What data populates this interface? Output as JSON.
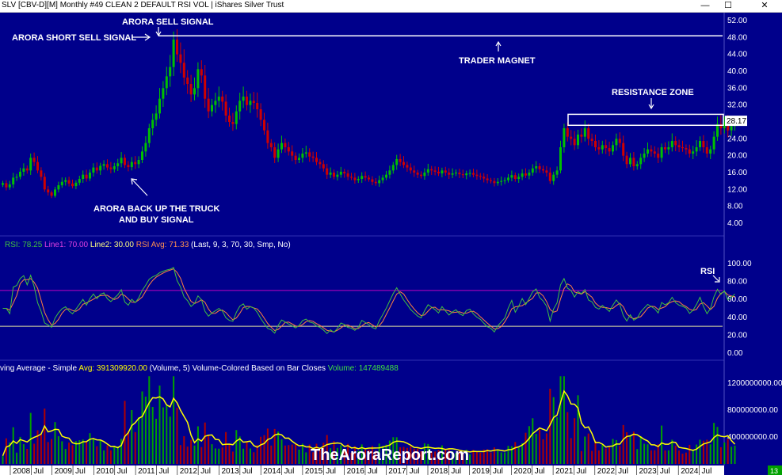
{
  "window": {
    "title": "SLV [CBV-D][M]  Monthly #49 CLEAN  2 DEFAULT RSI VOL | iShares Silver Trust",
    "minimize": "—",
    "maximize": "☐",
    "close": "✕"
  },
  "price_panel": {
    "last_price_label": "28.17",
    "annotations": {
      "short_sell": "ARORA SHORT SELL SIGNAL",
      "sell": "ARORA SELL SIGNAL",
      "trader_magnet": "TRADER MAGNET",
      "resistance": "RESISTANCE ZONE",
      "buy_line1": "ARORA BACK UP THE TRUCK",
      "buy_line2": "AND BUY SIGNAL"
    }
  },
  "rsi_panel": {
    "legend": {
      "rsi": "RSI: 78.25",
      "line1": "Line1: 70.00",
      "line2": "Line2: 30.00",
      "avg": "RSI Avg: 71.33",
      "params": "(Last, 9, 3, 70, 30, Smp, No)"
    },
    "label": "RSI"
  },
  "volume_panel": {
    "legend": {
      "ma": "ving Average - Simple",
      "avg": "Avg: 391309920.00",
      "vol": "(Volume, 5)  Volume-Colored Based on Bar Closes",
      "volume": "Volume: 147489488"
    },
    "watermark": "TheAroraReport.com",
    "corner_badge": "13"
  },
  "colors": {
    "background": "#00008b",
    "up": "#00c000",
    "down": "#d00000",
    "rsi_line": "#40c040",
    "rsi_avg": "#ff8040",
    "line1": "#c000c0",
    "line2": "#e0e0a0",
    "volume_ma": "#ffff00"
  },
  "chart_data": [
    {
      "type": "candlestick",
      "title": "SLV Monthly",
      "x_axis_labels": [
        "2008",
        "Jul",
        "2009",
        "Jul",
        "2010",
        "Jul",
        "2011",
        "Jul",
        "2012",
        "Jul",
        "2013",
        "Jul",
        "2014",
        "Jul",
        "2015",
        "Jul",
        "2016",
        "Jul",
        "2017",
        "Jul",
        "2018",
        "Jul",
        "2019",
        "Jul",
        "2020",
        "Jul",
        "2021",
        "Jul",
        "2022",
        "Jul",
        "2023",
        "Jul",
        "2024",
        "Jul"
      ],
      "y_ticks": [
        "52.00",
        "48.00",
        "44.00",
        "40.00",
        "36.00",
        "32.00",
        "28.00",
        "24.00",
        "20.00",
        "16.00",
        "12.00",
        "8.00",
        "4.00"
      ],
      "ylim": [
        0,
        53
      ],
      "resistance_zone": [
        27.2,
        29.8
      ],
      "trader_magnet_level": 48.4,
      "close_series": [
        13.5,
        12.5,
        13.2,
        14.8,
        15.0,
        16.2,
        17.0,
        16.5,
        19.5,
        18.5,
        16.5,
        15.0,
        12.0,
        11.3,
        10.5,
        12.0,
        13.0,
        13.8,
        14.2,
        13.4,
        12.8,
        13.6,
        14.5,
        15.5,
        14.6,
        16.0,
        17.2,
        16.5,
        17.6,
        18.0,
        17.2,
        16.8,
        17.5,
        18.2,
        19.5,
        17.8,
        17.3,
        18.5,
        18.0,
        19.0,
        21.0,
        23.0,
        26.5,
        28.5,
        30.0,
        33.5,
        36.0,
        38.8,
        41.0,
        47.5,
        44.0,
        42.0,
        38.5,
        37.0,
        34.5,
        36.0,
        40.5,
        39.0,
        33.5,
        30.5,
        32.0,
        33.0,
        34.0,
        32.8,
        29.5,
        28.0,
        27.5,
        30.5,
        33.0,
        34.0,
        32.0,
        33.0,
        32.5,
        31.0,
        28.5,
        26.0,
        23.0,
        22.0,
        19.5,
        21.5,
        23.0,
        22.0,
        21.0,
        20.0,
        19.0,
        19.5,
        20.5,
        20.8,
        19.8,
        19.5,
        18.5,
        18.0,
        17.0,
        15.5,
        16.0,
        15.0,
        15.5,
        16.2,
        15.8,
        15.0,
        14.8,
        14.2,
        14.5,
        15.2,
        14.8,
        14.4,
        13.8,
        13.5,
        14.2,
        14.8,
        15.5,
        16.5,
        17.8,
        19.2,
        18.5,
        17.8,
        17.2,
        16.5,
        16.0,
        15.5,
        15.2,
        16.0,
        16.8,
        16.5,
        16.2,
        15.8,
        16.5,
        16.0,
        15.5,
        15.8,
        16.0,
        15.6,
        15.4,
        15.8,
        15.9,
        15.5,
        15.2,
        15.0,
        14.6,
        14.2,
        14.0,
        13.5,
        13.8,
        14.0,
        14.2,
        14.8,
        15.4,
        14.5,
        15.0,
        15.8,
        15.3,
        16.0,
        17.0,
        17.5,
        16.8,
        16.5,
        16.0,
        14.0,
        15.5,
        16.5,
        22.0,
        26.5,
        24.5,
        24.0,
        22.5,
        25.0,
        24.5,
        26.5,
        24.0,
        23.5,
        22.0,
        21.5,
        22.5,
        21.8,
        21.0,
        22.5,
        24.0,
        23.0,
        20.0,
        18.0,
        19.5,
        17.5,
        18.0,
        19.5,
        20.5,
        21.5,
        21.0,
        20.5,
        19.5,
        22.0,
        21.5,
        22.0,
        23.5,
        22.5,
        22.0,
        21.8,
        21.5,
        20.5,
        21.0,
        22.0,
        23.5,
        22.0,
        20.5,
        21.5,
        24.5,
        27.5,
        26.5,
        28.0,
        26.0,
        27.0,
        28.17
      ]
    },
    {
      "type": "line",
      "title": "RSI",
      "y_ticks": [
        "100.00",
        "80.00",
        "60.00",
        "40.00",
        "20.00",
        "0.00"
      ],
      "ylim": [
        0,
        100
      ],
      "levels": [
        70,
        30
      ]
    },
    {
      "type": "bar",
      "title": "Volume",
      "y_ticks": [
        "1200000000.00",
        "800000000.00",
        "400000000.00"
      ],
      "ylim": [
        0,
        1350000000
      ]
    }
  ]
}
